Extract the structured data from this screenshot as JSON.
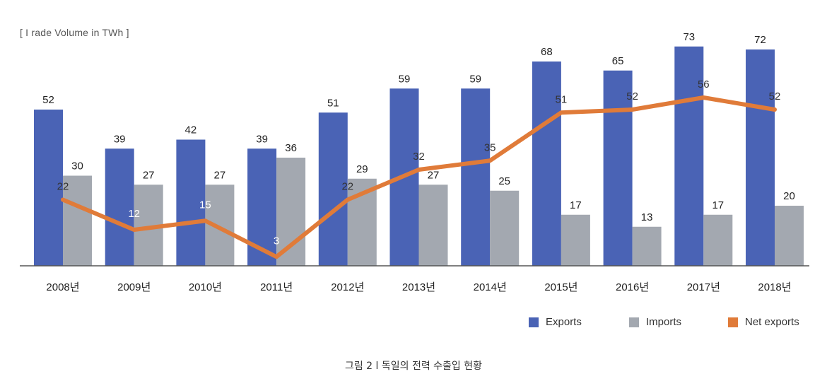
{
  "unit_label": "[ I rade Volume in TWh ]",
  "caption": "그림 2 l 독일의 전력 수출입 현황",
  "colors": {
    "exports": "#4a63b5",
    "imports": "#a3a8b0",
    "net": "#e07b39",
    "axis": "#555555"
  },
  "chart_data": {
    "type": "bar",
    "categories": [
      "2008년",
      "2009년",
      "2010년",
      "2011년",
      "2012년",
      "2013년",
      "2014년",
      "2015년",
      "2016년",
      "2017년",
      "2018년"
    ],
    "ylim": [
      0,
      80
    ],
    "series": [
      {
        "name": "Exports",
        "type": "bar",
        "values": [
          52,
          39,
          42,
          39,
          51,
          59,
          59,
          68,
          65,
          73,
          72
        ]
      },
      {
        "name": "Imports",
        "type": "bar",
        "values": [
          30,
          27,
          27,
          36,
          29,
          27,
          25,
          17,
          13,
          17,
          20
        ]
      },
      {
        "name": "Net exports",
        "type": "line",
        "values": [
          22,
          12,
          15,
          3,
          22,
          32,
          35,
          51,
          52,
          56,
          52
        ]
      }
    ],
    "legend_position": "bottom-right"
  }
}
